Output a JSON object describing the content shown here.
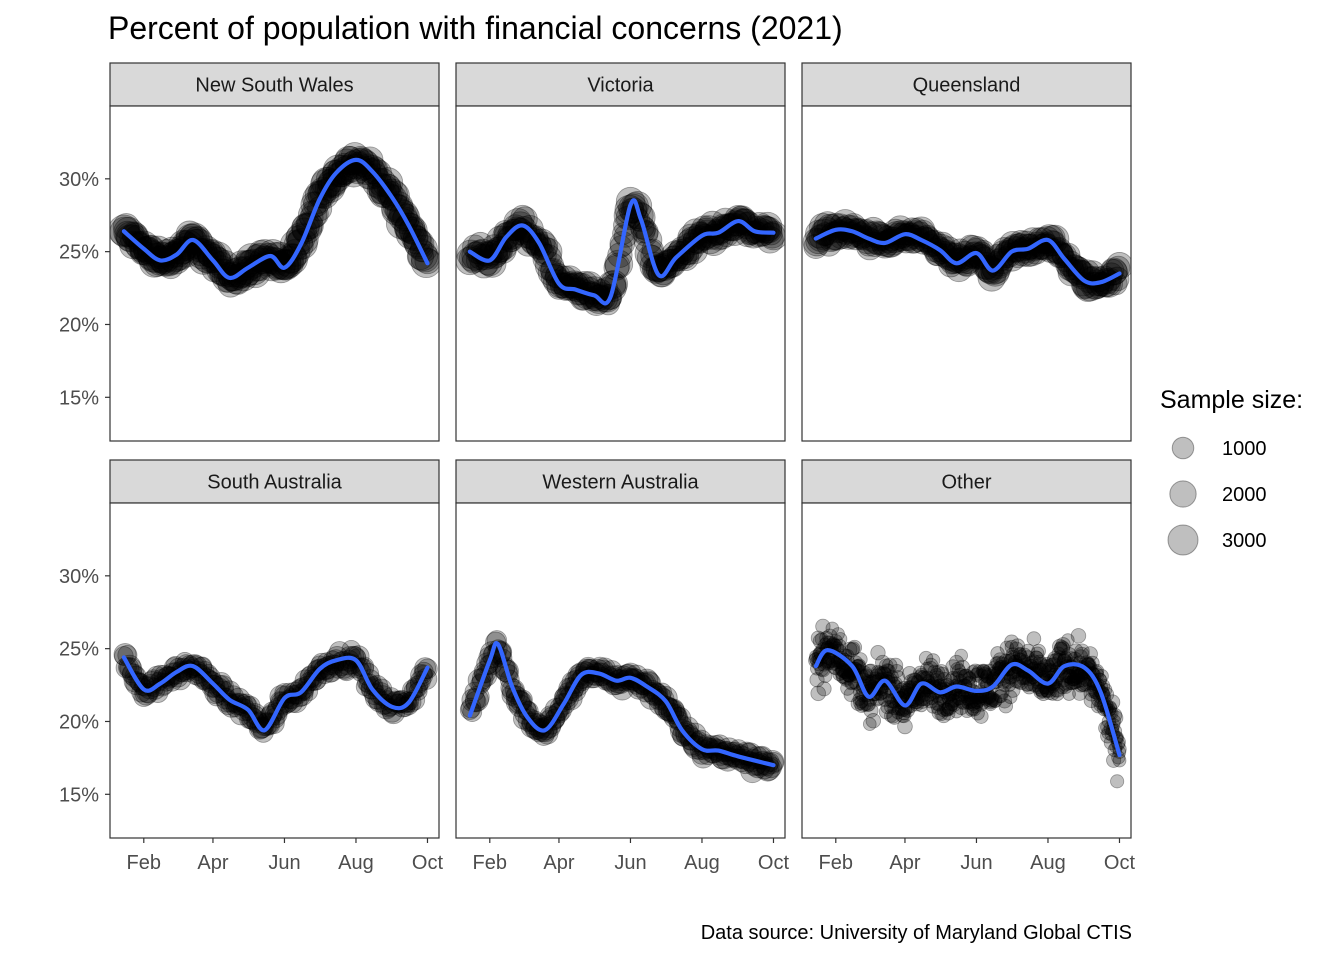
{
  "title": "Percent of population with financial concerns (2021)",
  "caption": "Data source: University of Maryland Global CTIS",
  "legend": {
    "title": "Sample size:",
    "entries": [
      {
        "label": "1000",
        "value": 1000
      },
      {
        "label": "2000",
        "value": 2000
      },
      {
        "label": "3000",
        "value": 3000
      }
    ]
  },
  "colors": {
    "point": "#000000",
    "smooth_line": "#3366FF",
    "strip_fill": "#D9D9D9",
    "panel_border": "#333333"
  },
  "chart_data": {
    "type": "scatter",
    "x_axis": {
      "type": "date",
      "range": [
        "2021-01-10",
        "2021-10-04"
      ],
      "ticks": [
        {
          "date": "2021-02-01",
          "label": "Feb"
        },
        {
          "date": "2021-04-01",
          "label": "Apr"
        },
        {
          "date": "2021-06-01",
          "label": "Jun"
        },
        {
          "date": "2021-08-01",
          "label": "Aug"
        },
        {
          "date": "2021-10-01",
          "label": "Oct"
        }
      ]
    },
    "y_axis": {
      "format": "percent",
      "range": [
        12,
        35
      ],
      "ticks": [
        {
          "value": 15,
          "label": "15%"
        },
        {
          "value": 20,
          "label": "20%"
        },
        {
          "value": 25,
          "label": "25%"
        },
        {
          "value": 30,
          "label": "30%"
        }
      ]
    },
    "grid": false,
    "legend_position": "right",
    "point_alpha": 0.25,
    "panels": [
      {
        "name": "New South Wales",
        "point_size": 2800,
        "smooth": [
          {
            "x": "2021-01-15",
            "y": 26.4
          },
          {
            "x": "2021-02-01",
            "y": 25.2
          },
          {
            "x": "2021-02-15",
            "y": 24.4
          },
          {
            "x": "2021-03-01",
            "y": 24.8
          },
          {
            "x": "2021-03-15",
            "y": 25.8
          },
          {
            "x": "2021-04-01",
            "y": 24.4
          },
          {
            "x": "2021-04-15",
            "y": 23.2
          },
          {
            "x": "2021-05-01",
            "y": 23.9
          },
          {
            "x": "2021-05-20",
            "y": 24.7
          },
          {
            "x": "2021-06-01",
            "y": 23.9
          },
          {
            "x": "2021-06-15",
            "y": 25.5
          },
          {
            "x": "2021-07-01",
            "y": 28.6
          },
          {
            "x": "2021-07-15",
            "y": 30.4
          },
          {
            "x": "2021-08-01",
            "y": 31.3
          },
          {
            "x": "2021-08-15",
            "y": 30.5
          },
          {
            "x": "2021-09-01",
            "y": 28.7
          },
          {
            "x": "2021-09-15",
            "y": 26.8
          },
          {
            "x": "2021-10-01",
            "y": 24.2
          }
        ]
      },
      {
        "name": "Victoria",
        "point_size": 2300,
        "smooth": [
          {
            "x": "2021-01-15",
            "y": 25.0
          },
          {
            "x": "2021-02-01",
            "y": 24.4
          },
          {
            "x": "2021-02-15",
            "y": 26.0
          },
          {
            "x": "2021-03-01",
            "y": 26.8
          },
          {
            "x": "2021-03-15",
            "y": 25.6
          },
          {
            "x": "2021-04-01",
            "y": 22.8
          },
          {
            "x": "2021-04-15",
            "y": 22.4
          },
          {
            "x": "2021-05-01",
            "y": 22.0
          },
          {
            "x": "2021-05-15",
            "y": 21.9
          },
          {
            "x": "2021-06-01",
            "y": 28.2
          },
          {
            "x": "2021-06-10",
            "y": 27.2
          },
          {
            "x": "2021-06-25",
            "y": 23.4
          },
          {
            "x": "2021-07-10",
            "y": 24.6
          },
          {
            "x": "2021-08-01",
            "y": 26.1
          },
          {
            "x": "2021-08-15",
            "y": 26.3
          },
          {
            "x": "2021-09-01",
            "y": 27.1
          },
          {
            "x": "2021-09-15",
            "y": 26.4
          },
          {
            "x": "2021-10-01",
            "y": 26.3
          }
        ]
      },
      {
        "name": "Queensland",
        "point_size": 2200,
        "smooth": [
          {
            "x": "2021-01-15",
            "y": 25.9
          },
          {
            "x": "2021-02-01",
            "y": 26.5
          },
          {
            "x": "2021-02-15",
            "y": 26.4
          },
          {
            "x": "2021-03-01",
            "y": 25.9
          },
          {
            "x": "2021-03-15",
            "y": 25.6
          },
          {
            "x": "2021-04-01",
            "y": 26.2
          },
          {
            "x": "2021-04-15",
            "y": 25.8
          },
          {
            "x": "2021-05-01",
            "y": 25.1
          },
          {
            "x": "2021-05-15",
            "y": 24.2
          },
          {
            "x": "2021-06-01",
            "y": 24.9
          },
          {
            "x": "2021-06-15",
            "y": 23.7
          },
          {
            "x": "2021-07-01",
            "y": 25.0
          },
          {
            "x": "2021-07-15",
            "y": 25.2
          },
          {
            "x": "2021-08-01",
            "y": 25.8
          },
          {
            "x": "2021-08-15",
            "y": 24.5
          },
          {
            "x": "2021-09-01",
            "y": 23.0
          },
          {
            "x": "2021-09-15",
            "y": 22.9
          },
          {
            "x": "2021-10-01",
            "y": 23.5
          }
        ]
      },
      {
        "name": "South Australia",
        "point_size": 1100,
        "smooth": [
          {
            "x": "2021-01-15",
            "y": 24.4
          },
          {
            "x": "2021-02-01",
            "y": 22.2
          },
          {
            "x": "2021-02-15",
            "y": 22.6
          },
          {
            "x": "2021-03-01",
            "y": 23.4
          },
          {
            "x": "2021-03-15",
            "y": 23.8
          },
          {
            "x": "2021-04-01",
            "y": 22.6
          },
          {
            "x": "2021-04-15",
            "y": 21.5
          },
          {
            "x": "2021-05-01",
            "y": 20.8
          },
          {
            "x": "2021-05-15",
            "y": 19.4
          },
          {
            "x": "2021-06-01",
            "y": 21.6
          },
          {
            "x": "2021-06-15",
            "y": 22.0
          },
          {
            "x": "2021-07-01",
            "y": 23.6
          },
          {
            "x": "2021-07-15",
            "y": 24.2
          },
          {
            "x": "2021-08-01",
            "y": 24.2
          },
          {
            "x": "2021-08-15",
            "y": 22.2
          },
          {
            "x": "2021-09-01",
            "y": 21.0
          },
          {
            "x": "2021-09-15",
            "y": 21.3
          },
          {
            "x": "2021-10-01",
            "y": 23.7
          }
        ]
      },
      {
        "name": "Western Australia",
        "point_size": 1300,
        "smooth": [
          {
            "x": "2021-01-15",
            "y": 20.4
          },
          {
            "x": "2021-02-01",
            "y": 24.2
          },
          {
            "x": "2021-02-08",
            "y": 25.3
          },
          {
            "x": "2021-02-20",
            "y": 22.4
          },
          {
            "x": "2021-03-05",
            "y": 20.3
          },
          {
            "x": "2021-03-20",
            "y": 19.4
          },
          {
            "x": "2021-04-05",
            "y": 21.2
          },
          {
            "x": "2021-04-20",
            "y": 23.2
          },
          {
            "x": "2021-05-05",
            "y": 23.3
          },
          {
            "x": "2021-05-20",
            "y": 22.8
          },
          {
            "x": "2021-06-01",
            "y": 23.0
          },
          {
            "x": "2021-06-15",
            "y": 22.4
          },
          {
            "x": "2021-07-01",
            "y": 21.4
          },
          {
            "x": "2021-07-15",
            "y": 19.4
          },
          {
            "x": "2021-08-01",
            "y": 18.1
          },
          {
            "x": "2021-08-15",
            "y": 18.0
          },
          {
            "x": "2021-09-01",
            "y": 17.6
          },
          {
            "x": "2021-10-01",
            "y": 17.0
          }
        ]
      },
      {
        "name": "Other",
        "point_size": 250,
        "smooth": [
          {
            "x": "2021-01-15",
            "y": 23.8
          },
          {
            "x": "2021-01-25",
            "y": 24.9
          },
          {
            "x": "2021-02-15",
            "y": 23.8
          },
          {
            "x": "2021-03-01",
            "y": 21.7
          },
          {
            "x": "2021-03-15",
            "y": 22.8
          },
          {
            "x": "2021-04-01",
            "y": 21.1
          },
          {
            "x": "2021-04-15",
            "y": 22.6
          },
          {
            "x": "2021-05-01",
            "y": 22.0
          },
          {
            "x": "2021-05-15",
            "y": 22.4
          },
          {
            "x": "2021-06-01",
            "y": 22.1
          },
          {
            "x": "2021-06-15",
            "y": 22.4
          },
          {
            "x": "2021-07-01",
            "y": 23.9
          },
          {
            "x": "2021-07-15",
            "y": 23.5
          },
          {
            "x": "2021-08-01",
            "y": 22.6
          },
          {
            "x": "2021-08-15",
            "y": 23.8
          },
          {
            "x": "2021-09-01",
            "y": 23.7
          },
          {
            "x": "2021-09-15",
            "y": 22.0
          },
          {
            "x": "2021-10-01",
            "y": 17.7
          }
        ]
      }
    ]
  }
}
